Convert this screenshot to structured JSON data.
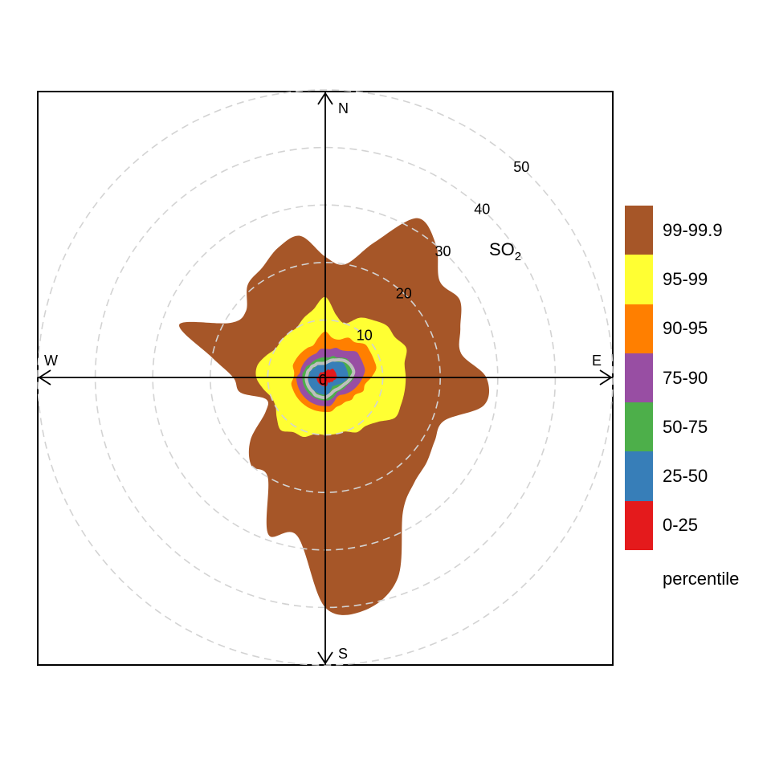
{
  "chart_data": {
    "type": "polar-percentile",
    "pollutant": "SO",
    "pollutant_subscript": "2",
    "directions": [
      "N",
      "E",
      "S",
      "W"
    ],
    "radial_ticks": [
      0,
      10,
      20,
      30,
      40,
      50
    ],
    "radial_max": 50,
    "bands": [
      {
        "label": "99-99.9",
        "color": "#A65628",
        "radii": [
          21,
          20,
          25,
          32,
          30,
          26,
          27,
          25,
          24,
          28,
          28,
          22,
          22,
          23,
          24,
          27,
          37,
          41,
          40,
          28,
          29,
          20,
          20,
          17,
          12,
          11,
          15,
          16,
          20,
          27,
          19,
          18,
          21,
          22,
          24,
          25
        ]
      },
      {
        "label": "95-99",
        "color": "#FFFF33",
        "radii": [
          14,
          11,
          10,
          12,
          13,
          14,
          14,
          15,
          14,
          14,
          14,
          14,
          14,
          12,
          11,
          11,
          10,
          10,
          10,
          10,
          11,
          11,
          12,
          11,
          10,
          10,
          11,
          12,
          12,
          11,
          10,
          10,
          10,
          10,
          11,
          12
        ]
      },
      {
        "label": "90-95",
        "color": "#FF7F00",
        "radii": [
          8,
          7,
          7,
          8,
          8,
          9,
          9,
          9,
          9,
          8,
          7,
          7,
          6,
          6,
          5.5,
          5.5,
          5.5,
          6,
          6,
          6,
          6,
          6,
          6,
          6,
          6,
          6,
          6,
          5.5,
          5.5,
          6,
          6,
          6,
          6,
          6,
          6,
          7
        ]
      },
      {
        "label": "75-90",
        "color": "#984EA3",
        "radii": [
          5,
          5,
          5.5,
          5.5,
          6,
          7,
          7,
          7,
          7,
          6.5,
          6,
          5.5,
          5,
          4.5,
          4,
          4,
          4.5,
          5,
          5,
          5,
          5,
          5,
          5,
          5,
          5,
          5,
          5,
          5,
          4.5,
          4.5,
          4.5,
          4.5,
          4.5,
          4.5,
          4.5,
          5
        ]
      },
      {
        "label": "50-75",
        "color": "#4DAF4A",
        "radii": [
          3.5,
          3.5,
          4,
          4,
          4.5,
          5,
          5,
          5,
          5,
          5,
          4.5,
          4,
          3.8,
          3.5,
          3.3,
          3.5,
          3.8,
          4,
          4,
          4,
          4,
          4,
          4,
          4,
          4,
          4,
          4,
          4,
          4,
          3.8,
          3.8,
          3.5,
          3.5,
          3.5,
          3.5,
          3.5
        ]
      },
      {
        "label": "25-50",
        "color": "#377EB8",
        "radii": [
          2.2,
          2.5,
          3,
          3.2,
          3.5,
          4,
          4,
          4,
          4,
          4,
          3.5,
          3,
          2.5,
          2.2,
          2,
          2.2,
          2.5,
          3,
          3,
          3,
          3,
          3,
          3,
          3,
          3,
          3,
          3,
          3,
          2.8,
          2.8,
          2.8,
          2.5,
          2.5,
          2.5,
          2.5,
          2.2
        ]
      },
      {
        "label": "0-25",
        "color": "#E41A1C",
        "radii": [
          1,
          1.2,
          1.5,
          1.5,
          2,
          2,
          2,
          2,
          2,
          2,
          1.8,
          1.5,
          1.5,
          1.2,
          1.2,
          1,
          1.2,
          1.5,
          1.5,
          1.5,
          1.5,
          1.5,
          1.5,
          1.5,
          1.5,
          1.5,
          1.5,
          1.5,
          1.2,
          1.2,
          1.2,
          1.2,
          1.2,
          1,
          1,
          1
        ]
      }
    ],
    "median_contour_color": "#BEBEBE",
    "median_contour_radii": [
      2.5,
      2.8,
      3.2,
      3.5,
      4,
      4.5,
      4.8,
      5,
      5,
      4.5,
      4,
      3.5,
      3.2,
      3,
      2.8,
      2.8,
      3,
      3.2,
      3.5,
      3.5,
      3.5,
      3.5,
      3.3,
      3.3,
      3.3,
      3.3,
      3.3,
      3.3,
      3.2,
      3.2,
      3,
      3,
      2.8,
      2.8,
      2.6,
      2.5
    ],
    "legend_title": "percentile",
    "grid": "dashed circles"
  }
}
